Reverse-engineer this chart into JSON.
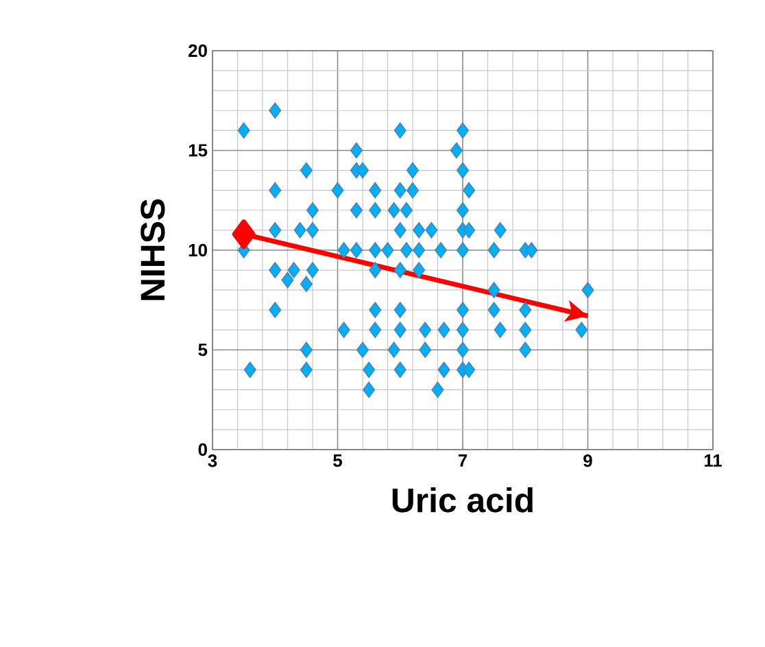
{
  "chart_data": {
    "type": "scatter",
    "xlabel": "Uric acid",
    "ylabel": "NIHSS",
    "xlim": [
      3,
      11
    ],
    "xticks": [
      3,
      5,
      7,
      9,
      11
    ],
    "ylim": [
      0,
      20
    ],
    "yticks": [
      0,
      5,
      10,
      15,
      20
    ],
    "grid": true,
    "marker": "diamond",
    "series": [
      {
        "color": "#00b0f0",
        "x": [
          3.5,
          4.0,
          3.6,
          3.5,
          4.0,
          4.0,
          4.4,
          4.6,
          4.0,
          4.3,
          4.6,
          4.2,
          4.5,
          4.0,
          4.5,
          4.5,
          4.5,
          4.6,
          5.0,
          5.3,
          5.3,
          5.4,
          5.6,
          5.3,
          5.6,
          6.0,
          6.2,
          6.2,
          6.0,
          6.1,
          5.9,
          6.5,
          6.3,
          6.0,
          5.6,
          5.1,
          5.3,
          5.8,
          6.1,
          6.3,
          6.65,
          7.0,
          5.6,
          6.0,
          6.3,
          5.6,
          6.0,
          5.1,
          5.6,
          6.0,
          6.4,
          6.7,
          7.0,
          5.4,
          5.9,
          6.4,
          7.0,
          5.5,
          6.0,
          6.7,
          7.0,
          5.5,
          6.6,
          6.9,
          7.0,
          7.0,
          7.0,
          7.0,
          7.0,
          7.1,
          7.1,
          7.6,
          7.5,
          8.0,
          8.1,
          7.5,
          7.5,
          8.0,
          7.6,
          8.0,
          8.0,
          7.1,
          9.0,
          8.9
        ],
        "values": [
          16,
          17,
          4,
          10,
          13,
          11,
          11,
          12,
          9,
          9,
          9,
          8.5,
          8.3,
          7,
          5,
          4,
          14,
          11,
          13,
          15,
          14,
          14,
          13,
          12,
          12,
          16,
          14,
          13,
          13,
          12,
          12,
          11,
          11,
          11,
          10,
          10,
          10,
          10,
          10,
          10,
          10,
          10,
          9,
          9,
          9,
          7,
          7,
          6,
          6,
          6,
          6,
          6,
          6,
          5,
          5,
          5,
          5,
          4,
          4,
          4,
          4,
          3,
          3,
          15,
          16,
          14,
          12,
          11,
          7,
          13,
          11,
          11,
          10,
          10,
          10,
          8,
          7,
          7,
          6,
          6,
          5,
          4,
          8,
          6
        ]
      },
      {
        "type": "line",
        "color": "#ff0000",
        "marker": "diamond",
        "x": [
          3.5,
          9
        ],
        "values": [
          10.8,
          6.7
        ]
      }
    ]
  }
}
